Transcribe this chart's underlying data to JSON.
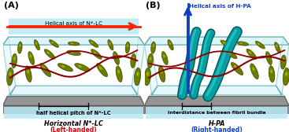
{
  "fig_width": 3.67,
  "fig_height": 1.68,
  "dpi": 100,
  "bg_color": "#ffffff",
  "panel_A": {
    "label": "(A)",
    "helical_axis_label": "Helical axis of N*-LC",
    "arrow_color": "#ff2200",
    "helix_color": "#8b0000",
    "ellipsoid_fill": "#6b7c00",
    "ellipsoid_highlight": "#c8d400",
    "ellipsoid_shadow": "#3a4400",
    "substrate_color": "#888888",
    "substrate_dark": "#555555",
    "glass_fill": "#d0f0f8",
    "glass_edge": "#2a9090",
    "label_bg": "#b8eaf5",
    "label_bottom1": "half helical pitch of N*-LC",
    "label_bottom1_bg": "#b8eaf5",
    "label_bottom2": "Horizontal N*-LC",
    "label_bottom3": "(Left-handed)",
    "label_color3": "#dd0000"
  },
  "panel_B": {
    "label": "(B)",
    "helical_axis_label": "Helical axis of H-PA",
    "arrow_color": "#1040c0",
    "helix_color": "#8b0000",
    "tube_color": "#00a0a0",
    "tube_highlight": "#40d0d0",
    "tube_shadow": "#005555",
    "ellipsoid_fill": "#6b7c00",
    "ellipsoid_highlight": "#c8d400",
    "ellipsoid_shadow": "#3a4400",
    "substrate_color": "#888888",
    "substrate_dark": "#555555",
    "glass_fill": "#d0f0f8",
    "glass_edge": "#2a9090",
    "label_bg": "#b8eaf5",
    "label_bottom1": "Interdistance between fibril bundle",
    "label_bottom1_bg": "#b8eaf5",
    "label_bottom2": "H-PA",
    "label_bottom3": "(Right-handed)",
    "label_color3": "#1040c0"
  }
}
